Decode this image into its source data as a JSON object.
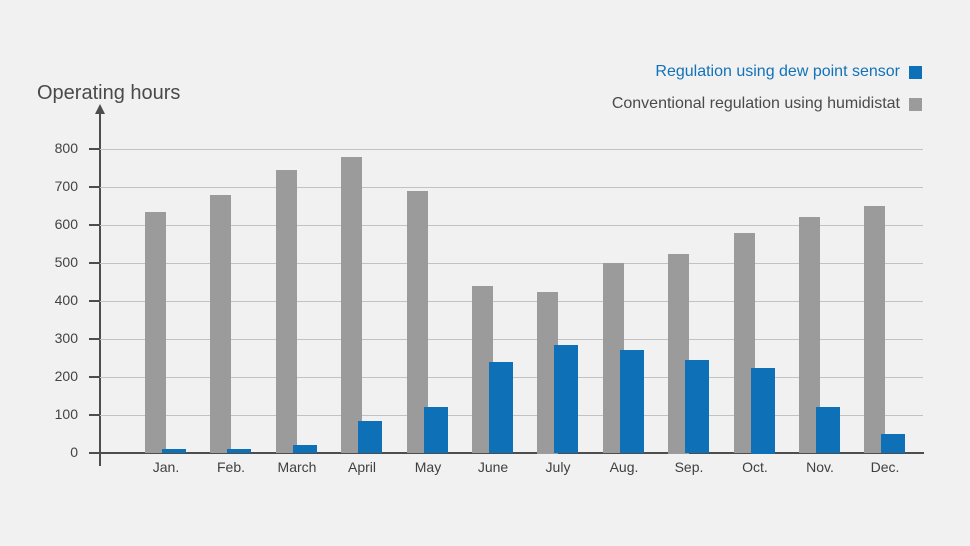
{
  "colors": {
    "background": "#f1f1f1",
    "gridline": "#c2c2c2",
    "axis": "#4d4d4d",
    "tick_text": "#434343"
  },
  "legend": {
    "entries": [
      {
        "label": "Regulation using dew point sensor",
        "text_color": "#1272b9",
        "swatch_color": "#0e70b6"
      },
      {
        "label": "Conventional regulation using humidistat",
        "text_color": "#4a4a4a",
        "swatch_color": "#9b9b9b"
      }
    ]
  },
  "chart_data": {
    "type": "bar",
    "title": "Operating hours",
    "categories": [
      "Jan.",
      "Feb.",
      "March",
      "April",
      "May",
      "June",
      "July",
      "Aug.",
      "Sep.",
      "Oct.",
      "Nov.",
      "Dec."
    ],
    "series": [
      {
        "name": "Regulation using dew point sensor",
        "color": "#0e70b6",
        "values": [
          10,
          10,
          20,
          85,
          120,
          240,
          285,
          270,
          245,
          225,
          120,
          50
        ]
      },
      {
        "name": "Conventional regulation using humidistat",
        "color": "#9b9b9b",
        "values": [
          635,
          680,
          745,
          780,
          690,
          440,
          425,
          500,
          525,
          580,
          620,
          650
        ]
      }
    ],
    "xlabel": "",
    "ylabel": "Operating hours",
    "ylim": [
      0,
      800
    ],
    "ytick_interval": 100,
    "yticks": [
      0,
      100,
      200,
      300,
      400,
      500,
      600,
      700,
      800
    ],
    "grid": true,
    "legend_position": "top-right"
  }
}
